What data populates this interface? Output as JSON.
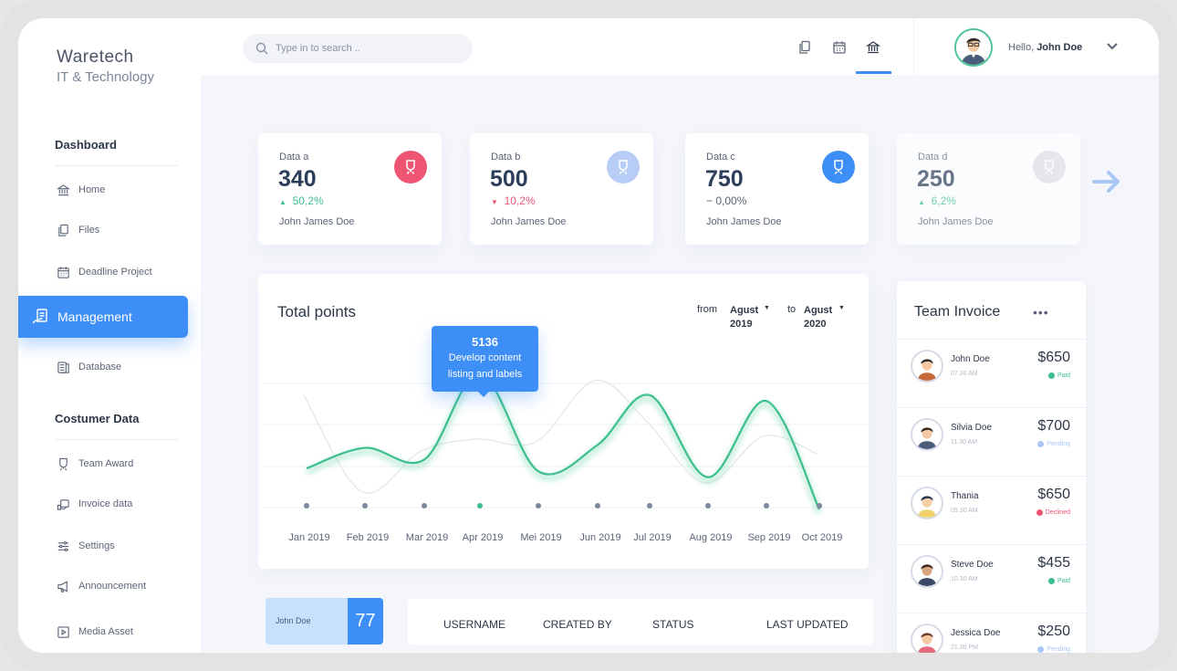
{
  "brand": {
    "name": "Waretech",
    "subtitle": "IT & Technology"
  },
  "sidebar": {
    "sections": [
      {
        "title": "Dashboard",
        "items": [
          {
            "label": "Home",
            "icon": "bank-icon"
          },
          {
            "label": "Files",
            "icon": "files-icon"
          },
          {
            "label": "Deadline Project",
            "icon": "calendar-icon"
          },
          {
            "label": "Management",
            "icon": "management-icon",
            "active": true
          },
          {
            "label": "Database",
            "icon": "database-icon"
          }
        ]
      },
      {
        "title": "Costumer Data",
        "items": [
          {
            "label": "Team Award",
            "icon": "award-icon"
          },
          {
            "label": "Invoice data",
            "icon": "invoice-icon"
          },
          {
            "label": "Settings",
            "icon": "sliders-icon"
          },
          {
            "label": "Announcement",
            "icon": "megaphone-icon"
          },
          {
            "label": "Media Asset",
            "icon": "media-icon"
          }
        ]
      }
    ]
  },
  "header": {
    "search_placeholder": "Type in to search ..",
    "greeting": "Hello,",
    "user_name": "John Doe",
    "active_icon": "bank-icon"
  },
  "stats": [
    {
      "label": "Data a",
      "value": "340",
      "change": "50,2%",
      "trend": "up",
      "owner": "John James Doe",
      "badge_color": "#ee5573"
    },
    {
      "label": "Data b",
      "value": "500",
      "change": "10,2%",
      "trend": "down",
      "owner": "John James Doe",
      "badge_color": "#b7cdf6"
    },
    {
      "label": "Data c",
      "value": "750",
      "change": "0,00%",
      "trend": "flat",
      "owner": "John James Doe",
      "badge_color": "#3d8ef7"
    },
    {
      "label": "Data d",
      "value": "250",
      "change": "6,2%",
      "trend": "up",
      "owner": "John James Doe",
      "badge_color": "#dfe2e8"
    }
  ],
  "chart": {
    "title": "Total points",
    "from_label": "from",
    "from_value": "Agust 2019",
    "to_label": "to",
    "to_value": "Agust 2020",
    "tooltip": {
      "value": "5136",
      "text": "Develop content listing and labels"
    },
    "accent": "#3cbf8c"
  },
  "chart_data": {
    "type": "line",
    "categories": [
      "Jan 2019",
      "Feb 2019",
      "Mar 2019",
      "Apr 2019",
      "Mei 2019",
      "Jun 2019",
      "Jul 2019",
      "Aug 2019",
      "Sep 2019",
      "Oct 2019"
    ],
    "series": [
      {
        "values": [
          1900,
          2600,
          2200,
          5136,
          1800,
          2700,
          4400,
          1600,
          4200,
          500
        ]
      },
      {
        "values": [
          4400,
          1100,
          2500,
          2900,
          2800,
          4900,
          3500,
          1400,
          3000,
          2400
        ]
      }
    ],
    "highlight": {
      "category": "Apr 2019",
      "value": 5136
    },
    "grid": true
  },
  "invoice": {
    "title": "Team Invoice",
    "more": "•••",
    "rows": [
      {
        "name": "John Doe",
        "time": "07.30 AM",
        "amount": "$650",
        "status": "Paid",
        "status_color": "#3cbf8c"
      },
      {
        "name": "Silvia Doe",
        "time": "11.30 AM",
        "amount": "$700",
        "status": "Pending",
        "status_color": "#a9c6f5"
      },
      {
        "name": "Thania",
        "time": "09.30 AM",
        "amount": "$650",
        "status": "Declined",
        "status_color": "#ee5573"
      },
      {
        "name": "Steve Doe",
        "time": "10.30 AM",
        "amount": "$455",
        "status": "Paid",
        "status_color": "#3cbf8c"
      },
      {
        "name": "Jessica Doe",
        "time": "21.30 PM",
        "amount": "$250",
        "status": "Pending",
        "status_color": "#a9c6f5"
      }
    ]
  },
  "bottom": {
    "mini_user": "John Doe",
    "mini_number": "77",
    "columns": [
      "USERNAME",
      "CREATED BY",
      "STATUS",
      "LAST UPDATED"
    ]
  }
}
